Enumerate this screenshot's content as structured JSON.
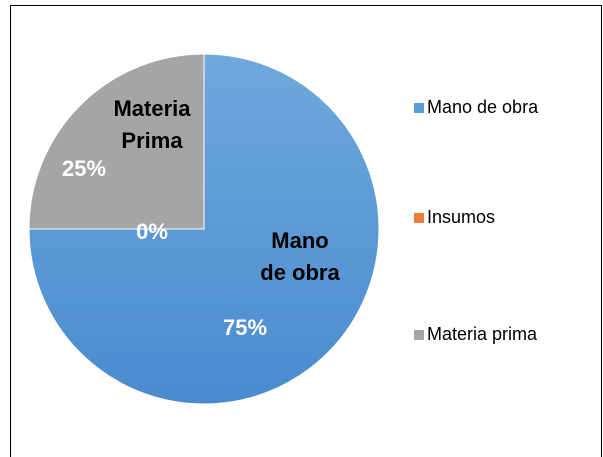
{
  "chart_data": {
    "type": "pie",
    "categories": [
      "Mano de obra",
      "Insumos",
      "Materia prima"
    ],
    "values": [
      75,
      0,
      25
    ],
    "value_labels": [
      "75%",
      "0%",
      "25%"
    ],
    "slice_labels": [
      "Mano de obra",
      null,
      "Materia Prima"
    ],
    "colors": [
      "#5b9bd5",
      "#ed7d31",
      "#a5a5a5"
    ],
    "legend": "right"
  }
}
